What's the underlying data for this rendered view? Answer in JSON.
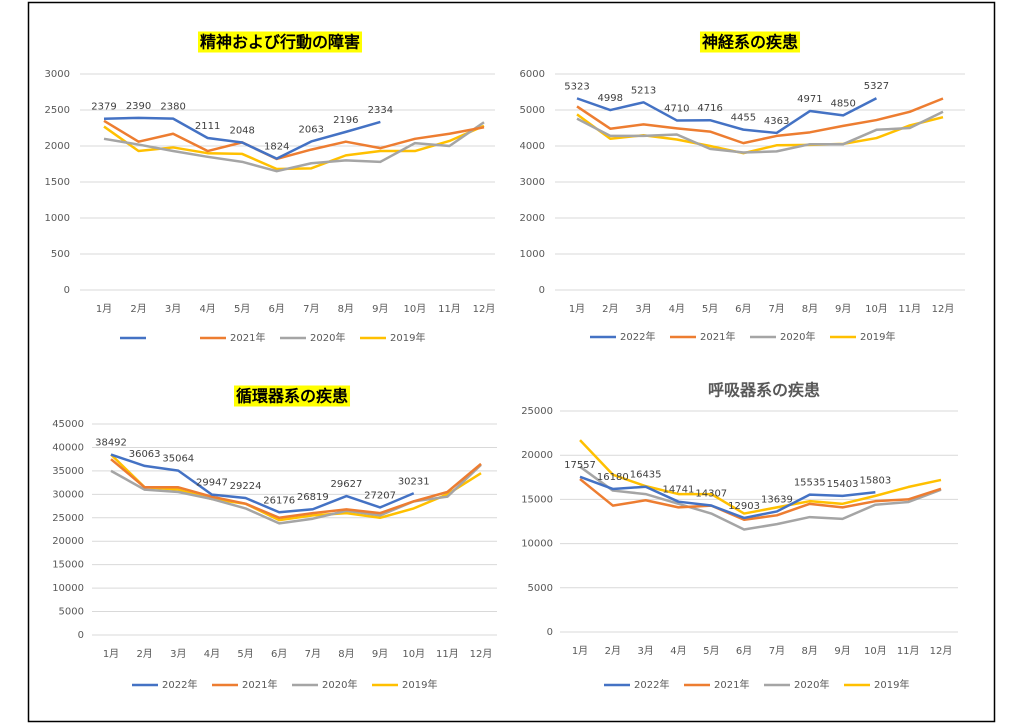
{
  "chart_data": [
    {
      "type": "line",
      "title": "精神および行動の障害",
      "title_highlight": "#ffff00",
      "categories": [
        "1月",
        "2月",
        "3月",
        "4月",
        "5月",
        "6月",
        "7月",
        "8月",
        "9月",
        "10月",
        "11月",
        "12月"
      ],
      "ylim": [
        0,
        3000
      ],
      "yticks": [
        0,
        500,
        1000,
        1500,
        2000,
        2500,
        3000
      ],
      "grid": true,
      "series": [
        {
          "name": null,
          "color": "#4472c4",
          "values": [
            2379,
            2390,
            2380,
            2111,
            2048,
            1824,
            2063,
            2196,
            2334,
            null,
            null,
            null
          ],
          "labels": true
        },
        {
          "name": "2021年",
          "color": "#ed7d31",
          "values": [
            2350,
            2060,
            2170,
            1930,
            2050,
            1820,
            1950,
            2060,
            1970,
            2100,
            2170,
            2260
          ]
        },
        {
          "name": "2020年",
          "color": "#a5a5a5",
          "values": [
            2100,
            2020,
            1930,
            1850,
            1780,
            1650,
            1760,
            1800,
            1780,
            2040,
            2000,
            2330
          ]
        },
        {
          "name": "2019年",
          "color": "#ffc000",
          "values": [
            2270,
            1930,
            1980,
            1900,
            1890,
            1680,
            1690,
            1870,
            1930,
            1930,
            2070,
            2280
          ]
        }
      ]
    },
    {
      "type": "line",
      "title": "神経系の疾患",
      "title_highlight": "#ffff00",
      "categories": [
        "1月",
        "2月",
        "3月",
        "4月",
        "5月",
        "6月",
        "7月",
        "8月",
        "9月",
        "10月",
        "11月",
        "12月"
      ],
      "ylim": [
        0,
        6000
      ],
      "yticks": [
        0,
        1000,
        2000,
        3000,
        4000,
        5000,
        6000
      ],
      "grid": true,
      "series": [
        {
          "name": "2022年",
          "color": "#4472c4",
          "values": [
            5323,
            4998,
            5213,
            4710,
            4716,
            4455,
            4363,
            4971,
            4850,
            5327,
            null,
            null
          ],
          "labels": true
        },
        {
          "name": "2021年",
          "color": "#ed7d31",
          "values": [
            5100,
            4480,
            4600,
            4490,
            4400,
            4080,
            4280,
            4380,
            4560,
            4720,
            4950,
            5320
          ]
        },
        {
          "name": "2020年",
          "color": "#a5a5a5",
          "values": [
            4760,
            4280,
            4280,
            4320,
            3920,
            3820,
            3850,
            4050,
            4050,
            4450,
            4500,
            4950
          ]
        },
        {
          "name": "2019年",
          "color": "#ffc000",
          "values": [
            4880,
            4200,
            4300,
            4180,
            4000,
            3800,
            4020,
            4030,
            4060,
            4220,
            4570,
            4800
          ]
        }
      ]
    },
    {
      "type": "line",
      "title": "循環器系の疾患",
      "title_highlight": "#ffff00",
      "categories": [
        "1月",
        "2月",
        "3月",
        "4月",
        "5月",
        "6月",
        "7月",
        "8月",
        "9月",
        "10月",
        "11月",
        "12月"
      ],
      "ylim": [
        0,
        45000
      ],
      "yticks": [
        0,
        5000,
        10000,
        15000,
        20000,
        25000,
        30000,
        35000,
        40000,
        45000
      ],
      "grid": true,
      "series": [
        {
          "name": "2022年",
          "color": "#4472c4",
          "values": [
            38492,
            36063,
            35064,
            29947,
            29224,
            26176,
            26819,
            29627,
            27207,
            30231,
            null,
            null
          ],
          "labels": true
        },
        {
          "name": "2021年",
          "color": "#ed7d31",
          "values": [
            37500,
            31500,
            31500,
            29500,
            28000,
            25000,
            26000,
            26800,
            26000,
            28500,
            30500,
            36500
          ]
        },
        {
          "name": "2020年",
          "color": "#a5a5a5",
          "values": [
            35000,
            31000,
            30500,
            29000,
            27000,
            23800,
            24800,
            26500,
            25500,
            28500,
            29500,
            36300
          ]
        },
        {
          "name": "2019年",
          "color": "#ffc000",
          "values": [
            38500,
            31500,
            31000,
            29000,
            28000,
            24500,
            25500,
            26000,
            25000,
            27000,
            30000,
            34500
          ]
        }
      ]
    },
    {
      "type": "line",
      "title": "呼吸器系の疾患",
      "categories": [
        "1月",
        "2月",
        "3月",
        "4月",
        "5月",
        "6月",
        "7月",
        "8月",
        "9月",
        "10月",
        "11月",
        "12月"
      ],
      "ylim": [
        0,
        25000
      ],
      "yticks": [
        0,
        5000,
        10000,
        15000,
        20000,
        25000
      ],
      "grid": true,
      "series": [
        {
          "name": "2022年",
          "color": "#4472c4",
          "values": [
            17557,
            16180,
            16435,
            14741,
            14307,
            12903,
            13639,
            15535,
            15403,
            15803,
            null,
            null
          ],
          "labels": true
        },
        {
          "name": "2021年",
          "color": "#ed7d31",
          "values": [
            17300,
            14300,
            14900,
            14100,
            14300,
            12700,
            13200,
            14500,
            14100,
            14800,
            15000,
            16200
          ]
        },
        {
          "name": "2020年",
          "color": "#a5a5a5",
          "values": [
            18700,
            16000,
            15600,
            14500,
            13400,
            11600,
            12200,
            13000,
            12800,
            14400,
            14700,
            16100
          ]
        },
        {
          "name": "2019年",
          "color": "#ffc000",
          "values": [
            21700,
            17800,
            16500,
            15600,
            15600,
            13400,
            14100,
            14800,
            14500,
            15400,
            16400,
            17200
          ]
        }
      ]
    }
  ]
}
